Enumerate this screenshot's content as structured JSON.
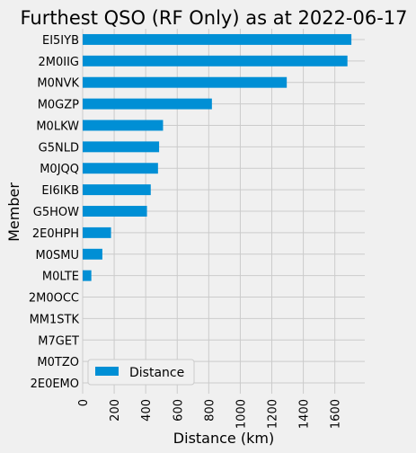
{
  "chart_data": {
    "type": "bar",
    "orientation": "horizontal",
    "title": "Furthest QSO (RF Only) as at 2022-06-17",
    "xlabel": "Distance (km)",
    "ylabel": "Member",
    "xlim": [
      0,
      1790
    ],
    "xticks": [
      0,
      200,
      400,
      600,
      800,
      1000,
      1200,
      1400,
      1600
    ],
    "grid": true,
    "legend_position": "lower-left",
    "bar_color": "#008fd5",
    "categories": [
      "EI5IYB",
      "2M0IIG",
      "M0NVK",
      "M0GZP",
      "M0LKW",
      "G5NLD",
      "M0JQQ",
      "EI6IKB",
      "G5HOW",
      "2E0HPH",
      "M0SMU",
      "M0LTE",
      "2M0OCC",
      "MM1STK",
      "M7GET",
      "M0TZO",
      "2E0EMO"
    ],
    "series": [
      {
        "name": "Distance",
        "values": [
          1705,
          1680,
          1295,
          820,
          510,
          485,
          478,
          432,
          408,
          180,
          125,
          55,
          0,
          0,
          0,
          0,
          0
        ]
      }
    ]
  }
}
